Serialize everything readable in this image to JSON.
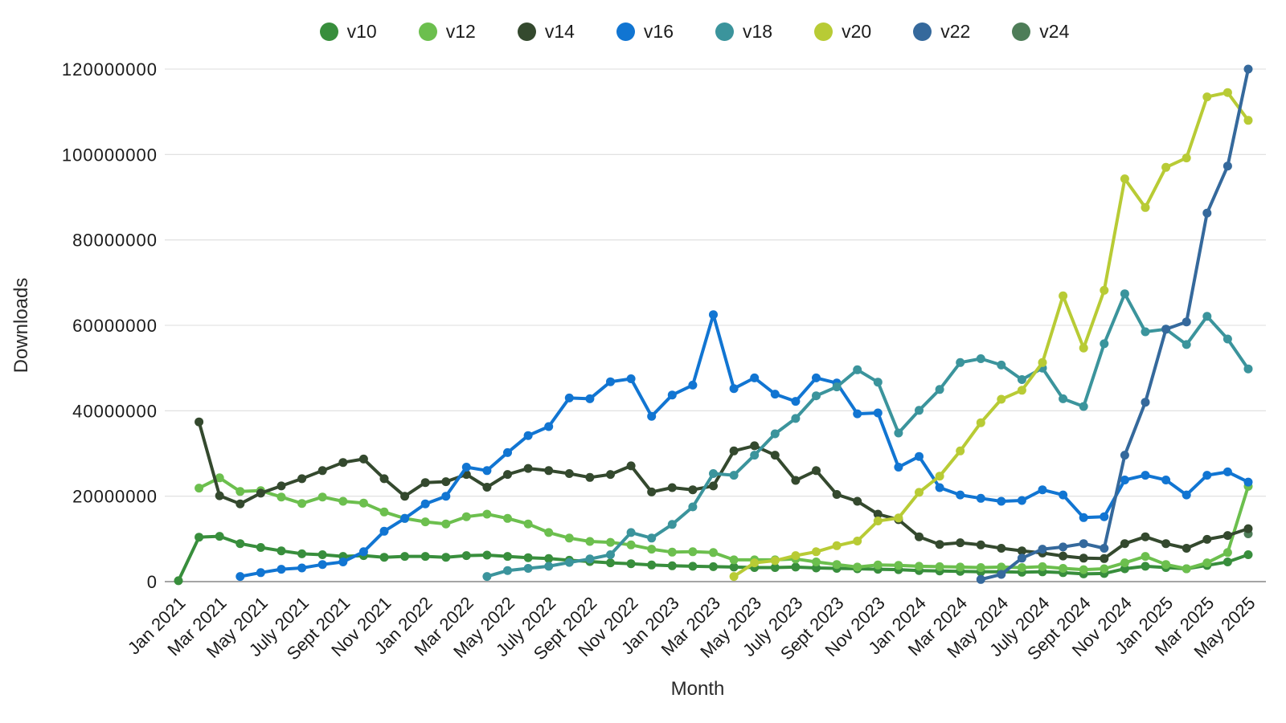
{
  "page": {
    "background": "#ffffff"
  },
  "legend": {
    "position": "top"
  },
  "chart_data": {
    "type": "line",
    "title": "",
    "xlabel": "Month",
    "ylabel": "Downloads",
    "ylim": [
      0,
      120000000
    ],
    "y_tick_step": 20000000,
    "y_tick_labels": [
      "0",
      "20000000",
      "40000000",
      "60000000",
      "80000000",
      "100000000",
      "120000000"
    ],
    "grid": "horizontal",
    "legend_position": "top",
    "x_range": [
      "Jan 2021",
      "May 2025"
    ],
    "x_tick_every": 2,
    "x_tick_labels": [
      "Jan 2021",
      "Mar 2021",
      "May 2021",
      "July 2021",
      "Sept 2021",
      "Nov 2021",
      "Jan 2022",
      "Mar 2022",
      "May 2022",
      "July 2022",
      "Sept 2022",
      "Nov 2022",
      "Jan 2023",
      "Mar 2023",
      "May 2023",
      "July 2023",
      "Sept 2023",
      "Nov 2023",
      "Jan 2024",
      "Mar 2024",
      "May 2024",
      "July 2024",
      "Sept 2024",
      "Nov 2024",
      "Jan 2025",
      "Mar 2025",
      "May 2025"
    ],
    "values_unit": "downloads, stored in millions",
    "series": [
      {
        "name": "v10",
        "color": "#388e3c",
        "values_millions": [
          0.2,
          10.4,
          10.6,
          8.9,
          8.0,
          7.2,
          6.5,
          6.3,
          5.9,
          6.1,
          5.7,
          5.9,
          5.9,
          5.7,
          6.1,
          6.2,
          5.9,
          5.6,
          5.4,
          5.0,
          4.7,
          4.4,
          4.2,
          3.9,
          3.7,
          3.6,
          3.5,
          3.4,
          3.3,
          3.3,
          3.4,
          3.2,
          3.1,
          3.0,
          2.9,
          2.8,
          2.6,
          2.5,
          2.4,
          2.3,
          2.3,
          2.2,
          2.3,
          2.1,
          1.8,
          1.9,
          3.0,
          3.6,
          3.3,
          3.0,
          3.8,
          4.6,
          6.3
        ]
      },
      {
        "name": "v12",
        "color": "#6cbf4e",
        "values_millions": [
          null,
          21.9,
          24.3,
          21.1,
          21.3,
          19.8,
          18.3,
          19.8,
          18.8,
          18.4,
          16.3,
          14.8,
          14.0,
          13.5,
          15.2,
          15.8,
          14.8,
          13.5,
          11.5,
          10.2,
          9.4,
          9.2,
          8.6,
          7.6,
          6.9,
          7.0,
          6.8,
          5.1,
          5.1,
          5.1,
          5.3,
          4.6,
          4.0,
          3.4,
          3.9,
          3.8,
          3.6,
          3.5,
          3.4,
          3.3,
          3.4,
          3.3,
          3.5,
          3.1,
          2.8,
          3.0,
          4.4,
          5.9,
          4.0,
          3.0,
          4.4,
          6.8,
          22.3
        ]
      },
      {
        "name": "v14",
        "color": "#34492e",
        "values_millions": [
          null,
          37.4,
          20.1,
          18.2,
          20.7,
          22.4,
          24.1,
          26.0,
          27.9,
          28.7,
          24.1,
          20.0,
          23.2,
          23.4,
          25.1,
          22.1,
          25.1,
          26.5,
          26.0,
          25.3,
          24.4,
          25.1,
          27.1,
          21.0,
          22.0,
          21.5,
          22.4,
          30.6,
          31.8,
          29.6,
          23.7,
          26.0,
          20.4,
          18.8,
          15.8,
          14.5,
          10.5,
          8.7,
          9.1,
          8.6,
          7.8,
          7.2,
          6.7,
          6.0,
          5.5,
          5.4,
          8.9,
          10.5,
          8.9,
          7.8,
          9.9,
          10.8,
          12.4
        ]
      },
      {
        "name": "v16",
        "color": "#1175d2",
        "values_millions": [
          null,
          null,
          null,
          1.2,
          2.1,
          2.9,
          3.2,
          4.0,
          4.6,
          7.0,
          11.8,
          14.8,
          18.2,
          20.0,
          26.8,
          26.0,
          30.2,
          34.2,
          36.3,
          43.0,
          42.8,
          46.8,
          47.5,
          38.7,
          43.7,
          46.0,
          62.5,
          45.2,
          47.7,
          43.9,
          42.2,
          47.7,
          46.5,
          39.3,
          39.5,
          26.8,
          29.3,
          22.0,
          20.3,
          19.5,
          18.8,
          19.0,
          21.5,
          20.3,
          15.0,
          15.2,
          23.8,
          24.9,
          23.8,
          20.3,
          24.9,
          25.7,
          23.3
        ]
      },
      {
        "name": "v18",
        "color": "#3b949c",
        "values_millions": [
          null,
          null,
          null,
          null,
          null,
          null,
          null,
          null,
          null,
          null,
          null,
          null,
          null,
          null,
          null,
          1.2,
          2.6,
          3.1,
          3.6,
          4.5,
          5.3,
          6.3,
          11.5,
          10.2,
          13.4,
          17.5,
          25.3,
          24.9,
          29.6,
          34.6,
          38.2,
          43.5,
          45.6,
          49.6,
          46.7,
          34.8,
          40.1,
          45.0,
          51.3,
          52.2,
          50.7,
          47.3,
          50.0,
          42.8,
          41.0,
          55.7,
          67.4,
          58.5,
          59.1,
          55.5,
          62.1,
          56.8,
          49.8
        ]
      },
      {
        "name": "v20",
        "color": "#b8cb35",
        "values_millions": [
          null,
          null,
          null,
          null,
          null,
          null,
          null,
          null,
          null,
          null,
          null,
          null,
          null,
          null,
          null,
          null,
          null,
          null,
          null,
          null,
          null,
          null,
          null,
          null,
          null,
          null,
          null,
          1.2,
          4.4,
          4.9,
          6.1,
          7.0,
          8.4,
          9.5,
          14.2,
          14.9,
          20.9,
          24.7,
          30.6,
          37.2,
          42.7,
          44.8,
          51.3,
          66.9,
          54.7,
          68.2,
          94.3,
          87.6,
          97.0,
          99.2,
          113.5,
          114.5,
          108.0
        ]
      },
      {
        "name": "v22",
        "color": "#35699c",
        "values_millions": [
          null,
          null,
          null,
          null,
          null,
          null,
          null,
          null,
          null,
          null,
          null,
          null,
          null,
          null,
          null,
          null,
          null,
          null,
          null,
          null,
          null,
          null,
          null,
          null,
          null,
          null,
          null,
          null,
          null,
          null,
          null,
          null,
          null,
          null,
          null,
          null,
          null,
          null,
          null,
          0.5,
          1.7,
          5.5,
          7.6,
          8.1,
          8.9,
          7.8,
          29.6,
          42.0,
          59.1,
          60.8,
          86.3,
          97.3,
          120.0
        ]
      },
      {
        "name": "v24",
        "color": "#4e7d58",
        "values_millions": [
          null,
          null,
          null,
          null,
          null,
          null,
          null,
          null,
          null,
          null,
          null,
          null,
          null,
          null,
          null,
          null,
          null,
          null,
          null,
          null,
          null,
          null,
          null,
          null,
          null,
          null,
          null,
          null,
          null,
          null,
          null,
          null,
          null,
          null,
          null,
          null,
          null,
          null,
          null,
          null,
          null,
          null,
          null,
          null,
          null,
          null,
          null,
          null,
          null,
          null,
          null,
          null,
          11.2
        ]
      }
    ]
  }
}
